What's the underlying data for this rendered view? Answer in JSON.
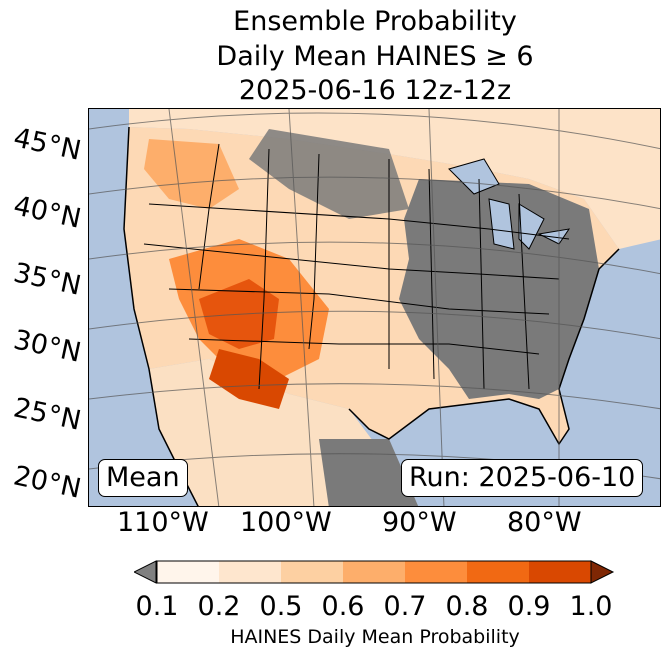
{
  "title": {
    "line1": "Ensemble Probability",
    "line2": "Daily Mean HAINES ≥ 6",
    "line3": "2025-06-16 12z-12z"
  },
  "map": {
    "latitude_labels": [
      "45°N",
      "40°N",
      "35°N",
      "30°N",
      "25°N",
      "20°N"
    ],
    "longitude_labels": [
      "110°W",
      "100°W",
      "90°W",
      "80°W"
    ],
    "left_box": "Mean",
    "right_box": "Run: 2025-06-10",
    "colors": {
      "ocean": "#b0c4de",
      "no_data_gray": "#808080",
      "low_prob": "#fff5eb"
    }
  },
  "colorbar": {
    "ticks": [
      "0.1",
      "0.2",
      "0.5",
      "0.6",
      "0.7",
      "0.8",
      "0.9",
      "1.0"
    ],
    "label": "HAINES Daily Mean Probability",
    "colors": [
      "#808080",
      "#fff5eb",
      "#fee6ce",
      "#fdd0a2",
      "#fdae6b",
      "#fd8d3c",
      "#f16913",
      "#d94801",
      "#7f2704"
    ]
  }
}
